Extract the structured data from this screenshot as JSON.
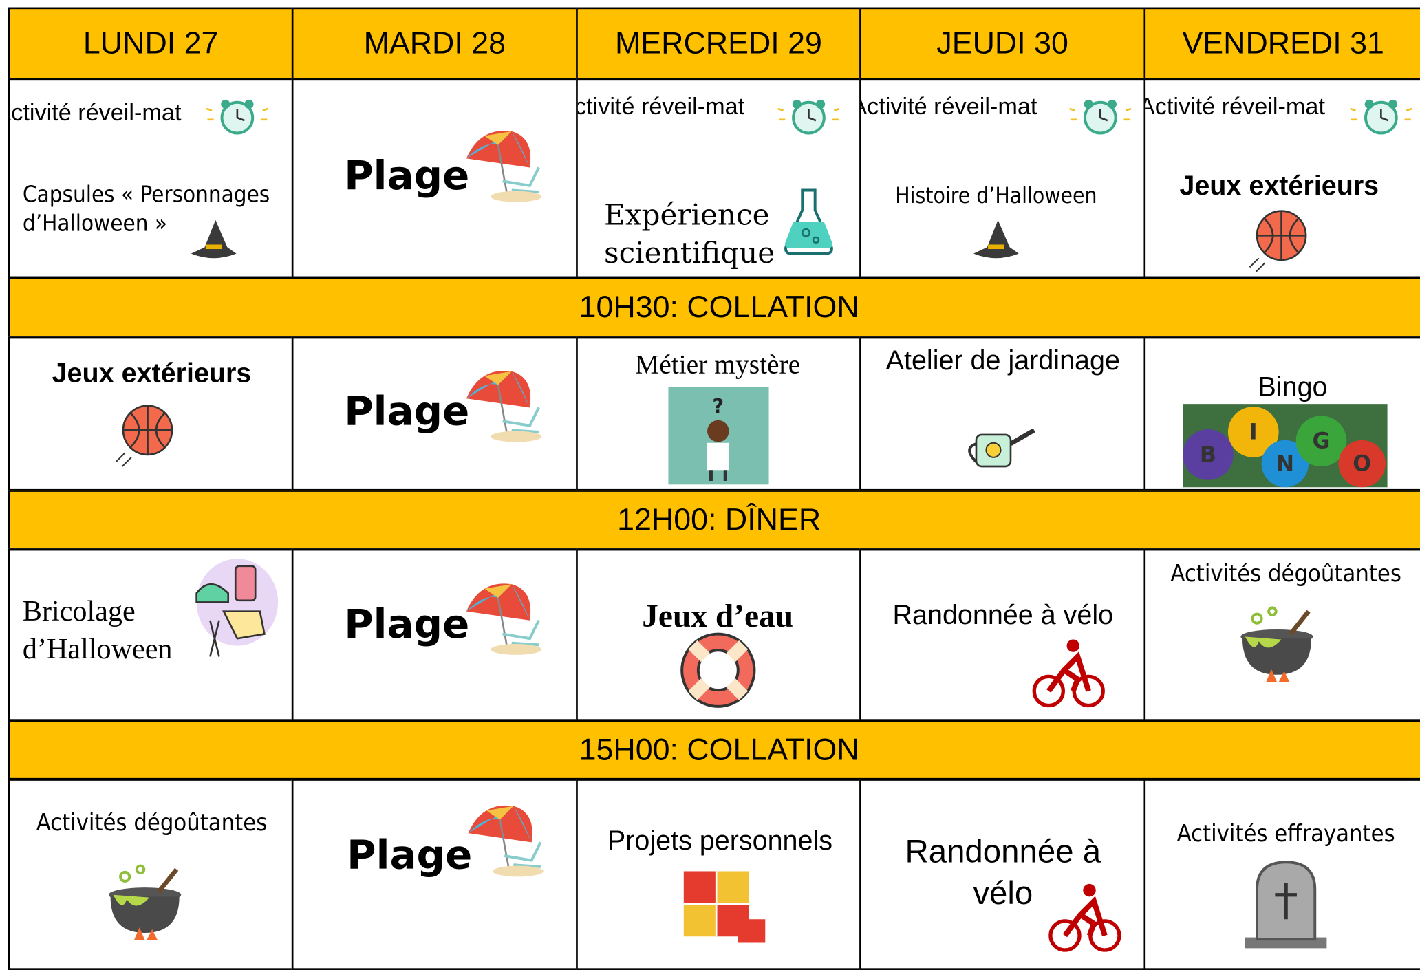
{
  "header": {
    "days": [
      "LUNDI 27",
      "MARDI 28",
      "MERCREDI 29",
      "JEUDI 30",
      "VENDREDI 31"
    ]
  },
  "rows": [
    {
      "cells": [
        [
          "Activité réveil-mat",
          "Capsules « Personnages d’Halloween »"
        ],
        [
          "Plage"
        ],
        [
          "Activité réveil-mat",
          "Expérience scientifique"
        ],
        [
          "Activité réveil-mat",
          "Histoire d’Halloween"
        ],
        [
          "Activité réveil-mat",
          "Jeux extérieurs"
        ]
      ]
    },
    {
      "break": "10H30: COLLATION"
    },
    {
      "cells": [
        [
          "Jeux extérieurs"
        ],
        [
          "Plage"
        ],
        [
          "Métier mystère"
        ],
        [
          "Atelier de jardinage"
        ],
        [
          "Bingo"
        ]
      ]
    },
    {
      "break": "12H00: DÎNER"
    },
    {
      "cells": [
        [
          "Bricolage d’Halloween"
        ],
        [
          "Plage"
        ],
        [
          "Jeux d’eau"
        ],
        [
          "Randonnée à vélo"
        ],
        [
          "Activités dégoûtantes"
        ]
      ]
    },
    {
      "break": "15H00: COLLATION"
    },
    {
      "cells": [
        [
          "Activités dégoûtantes"
        ],
        [
          "Plage"
        ],
        [
          "Projets personnels"
        ],
        [
          "Randonnée à vélo"
        ],
        [
          "Activités effrayantes"
        ]
      ]
    }
  ]
}
